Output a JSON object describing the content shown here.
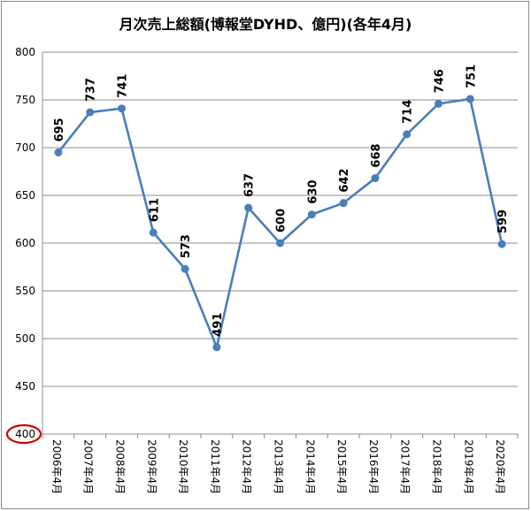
{
  "chart_data": {
    "type": "line",
    "title": "月次売上総額(博報堂DYHD、億円)(各年4月)",
    "xlabel": "",
    "ylabel": "",
    "categories": [
      "2006年4月",
      "2007年4月",
      "2008年4月",
      "2009年4月",
      "2010年4月",
      "2011年4月",
      "2012年4月",
      "2013年4月",
      "2014年4月",
      "2015年4月",
      "2016年4月",
      "2017年4月",
      "2018年4月",
      "2019年4月",
      "2020年4月"
    ],
    "series": [
      {
        "values": [
          695,
          737,
          741,
          611,
          573,
          491,
          637,
          600,
          630,
          642,
          668,
          714,
          746,
          751,
          599
        ]
      }
    ],
    "ylim": [
      400,
      800
    ],
    "yticks": [
      400,
      450,
      500,
      550,
      600,
      650,
      700,
      750,
      800
    ],
    "grid": true,
    "legend": "none",
    "annotations": [
      {
        "type": "ellipse",
        "target": "y-tick-400",
        "color": "#cc0000"
      }
    ],
    "colors": {
      "line": "#4a7ebb",
      "grid": "#8c8c8c",
      "annotation": "#cc0000"
    }
  }
}
